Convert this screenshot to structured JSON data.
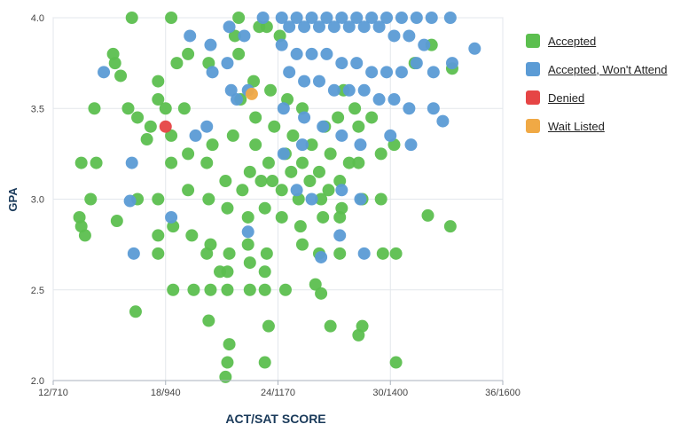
{
  "chart_data": {
    "type": "scatter",
    "title": "",
    "xlabel": "ACT/SAT SCORE",
    "ylabel": "GPA",
    "xlim": [
      12,
      36
    ],
    "ylim": [
      2.0,
      4.0
    ],
    "x_ticks": [
      "12/710",
      "18/940",
      "24/1170",
      "30/1400",
      "36/1600"
    ],
    "x_tick_values": [
      12,
      18,
      24,
      30,
      36
    ],
    "y_ticks": [
      "2.0",
      "2.5",
      "3.0",
      "3.5",
      "4.0"
    ],
    "y_tick_values": [
      2.0,
      2.5,
      3.0,
      3.5,
      4.0
    ],
    "grid": true,
    "legend_position": "right",
    "series": [
      {
        "name": "Accepted",
        "color": "#5cbf4f",
        "points": [
          [
            16.2,
            4.0
          ],
          [
            18.3,
            4.0
          ],
          [
            21.9,
            4.0
          ],
          [
            23.0,
            3.95
          ],
          [
            23.4,
            3.95
          ],
          [
            24.1,
            3.9
          ],
          [
            21.7,
            3.9
          ],
          [
            19.2,
            3.8
          ],
          [
            20.3,
            3.75
          ],
          [
            15.3,
            3.75
          ],
          [
            17.6,
            3.65
          ],
          [
            18.6,
            3.75
          ],
          [
            21.9,
            3.8
          ],
          [
            22.7,
            3.65
          ],
          [
            23.6,
            3.6
          ],
          [
            24.5,
            3.55
          ],
          [
            25.3,
            3.5
          ],
          [
            26.5,
            3.4
          ],
          [
            27.2,
            3.45
          ],
          [
            28.3,
            3.4
          ],
          [
            17.6,
            3.55
          ],
          [
            18.0,
            3.5
          ],
          [
            19.0,
            3.5
          ],
          [
            16.0,
            3.5
          ],
          [
            14.2,
            3.5
          ],
          [
            20.5,
            3.3
          ],
          [
            21.6,
            3.35
          ],
          [
            22.8,
            3.3
          ],
          [
            23.5,
            3.2
          ],
          [
            24.4,
            3.25
          ],
          [
            25.3,
            3.2
          ],
          [
            26.2,
            3.15
          ],
          [
            27.3,
            3.1
          ],
          [
            28.3,
            3.2
          ],
          [
            29.5,
            3.25
          ],
          [
            30.2,
            3.3
          ],
          [
            18.3,
            3.35
          ],
          [
            19.2,
            3.25
          ],
          [
            20.2,
            3.2
          ],
          [
            21.2,
            3.1
          ],
          [
            22.1,
            3.05
          ],
          [
            23.1,
            3.1
          ],
          [
            24.2,
            3.05
          ],
          [
            25.1,
            3.0
          ],
          [
            26.3,
            3.0
          ],
          [
            27.4,
            2.95
          ],
          [
            28.5,
            3.0
          ],
          [
            29.5,
            3.0
          ],
          [
            18.3,
            3.2
          ],
          [
            19.2,
            3.05
          ],
          [
            20.3,
            3.0
          ],
          [
            21.3,
            2.95
          ],
          [
            22.4,
            2.9
          ],
          [
            23.3,
            2.95
          ],
          [
            24.2,
            2.9
          ],
          [
            25.2,
            2.85
          ],
          [
            26.4,
            2.9
          ],
          [
            27.3,
            2.9
          ],
          [
            14.3,
            3.2
          ],
          [
            13.4,
            2.9
          ],
          [
            13.7,
            2.8
          ],
          [
            15.4,
            2.88
          ],
          [
            16.5,
            3.0
          ],
          [
            17.6,
            3.0
          ],
          [
            18.4,
            2.85
          ],
          [
            19.4,
            2.8
          ],
          [
            20.4,
            2.75
          ],
          [
            21.4,
            2.7
          ],
          [
            22.4,
            2.75
          ],
          [
            23.4,
            2.7
          ],
          [
            17.6,
            2.8
          ],
          [
            17.6,
            2.7
          ],
          [
            20.2,
            2.7
          ],
          [
            21.3,
            2.6
          ],
          [
            22.5,
            2.65
          ],
          [
            23.3,
            2.6
          ],
          [
            25.3,
            2.75
          ],
          [
            26.2,
            2.7
          ],
          [
            27.3,
            2.7
          ],
          [
            29.6,
            2.7
          ],
          [
            18.4,
            2.5
          ],
          [
            19.5,
            2.5
          ],
          [
            20.4,
            2.5
          ],
          [
            21.3,
            2.5
          ],
          [
            22.5,
            2.5
          ],
          [
            23.3,
            2.5
          ],
          [
            24.4,
            2.5
          ],
          [
            26.0,
            2.53
          ],
          [
            26.3,
            2.48
          ],
          [
            20.9,
            2.6
          ],
          [
            16.4,
            2.38
          ],
          [
            20.3,
            2.33
          ],
          [
            23.5,
            2.3
          ],
          [
            26.8,
            2.3
          ],
          [
            28.5,
            2.3
          ],
          [
            21.4,
            2.2
          ],
          [
            21.3,
            2.1
          ],
          [
            23.3,
            2.1
          ],
          [
            30.3,
            2.1
          ],
          [
            21.2,
            2.02
          ],
          [
            28.3,
            2.25
          ],
          [
            30.3,
            2.7
          ],
          [
            32.0,
            2.91
          ],
          [
            33.2,
            2.85
          ],
          [
            33.3,
            3.72
          ],
          [
            32.2,
            3.85
          ],
          [
            31.3,
            3.75
          ],
          [
            27.5,
            3.6
          ],
          [
            28.1,
            3.5
          ],
          [
            29.0,
            3.45
          ],
          [
            17.2,
            3.4
          ],
          [
            17.0,
            3.33
          ],
          [
            16.5,
            3.45
          ],
          [
            15.2,
            3.8
          ],
          [
            14.0,
            3.0
          ],
          [
            13.5,
            3.2
          ],
          [
            13.5,
            2.85
          ],
          [
            15.6,
            3.68
          ],
          [
            22.0,
            3.55
          ],
          [
            22.8,
            3.45
          ],
          [
            23.8,
            3.4
          ],
          [
            24.8,
            3.35
          ],
          [
            25.8,
            3.3
          ],
          [
            26.8,
            3.25
          ],
          [
            27.8,
            3.2
          ],
          [
            22.5,
            3.15
          ],
          [
            23.7,
            3.1
          ],
          [
            24.7,
            3.15
          ],
          [
            25.7,
            3.1
          ],
          [
            26.7,
            3.05
          ]
        ]
      },
      {
        "name": "Accepted, Won't Attend",
        "color": "#5b9bd5",
        "points": [
          [
            24.2,
            4.0
          ],
          [
            25.0,
            4.0
          ],
          [
            25.8,
            4.0
          ],
          [
            26.6,
            4.0
          ],
          [
            27.4,
            4.0
          ],
          [
            28.2,
            4.0
          ],
          [
            29.0,
            4.0
          ],
          [
            29.8,
            4.0
          ],
          [
            30.6,
            4.0
          ],
          [
            31.4,
            4.0
          ],
          [
            32.2,
            4.0
          ],
          [
            33.2,
            4.0
          ],
          [
            24.6,
            3.95
          ],
          [
            25.4,
            3.95
          ],
          [
            26.2,
            3.95
          ],
          [
            27.0,
            3.95
          ],
          [
            27.8,
            3.95
          ],
          [
            28.6,
            3.95
          ],
          [
            29.4,
            3.95
          ],
          [
            30.2,
            3.9
          ],
          [
            31.0,
            3.9
          ],
          [
            31.8,
            3.85
          ],
          [
            34.5,
            3.83
          ],
          [
            24.2,
            3.85
          ],
          [
            25.0,
            3.8
          ],
          [
            25.8,
            3.8
          ],
          [
            26.6,
            3.8
          ],
          [
            27.4,
            3.75
          ],
          [
            28.2,
            3.75
          ],
          [
            29.0,
            3.7
          ],
          [
            29.8,
            3.7
          ],
          [
            30.6,
            3.7
          ],
          [
            31.4,
            3.75
          ],
          [
            32.3,
            3.7
          ],
          [
            33.3,
            3.75
          ],
          [
            24.6,
            3.7
          ],
          [
            25.4,
            3.65
          ],
          [
            26.2,
            3.65
          ],
          [
            27.0,
            3.6
          ],
          [
            27.8,
            3.6
          ],
          [
            28.6,
            3.6
          ],
          [
            29.4,
            3.55
          ],
          [
            30.2,
            3.55
          ],
          [
            31.0,
            3.5
          ],
          [
            32.3,
            3.5
          ],
          [
            21.4,
            3.95
          ],
          [
            22.2,
            3.9
          ],
          [
            19.3,
            3.9
          ],
          [
            20.4,
            3.85
          ],
          [
            21.3,
            3.75
          ],
          [
            20.5,
            3.7
          ],
          [
            14.7,
            3.7
          ],
          [
            21.5,
            3.6
          ],
          [
            22.4,
            3.6
          ],
          [
            21.8,
            3.55
          ],
          [
            24.3,
            3.5
          ],
          [
            25.4,
            3.45
          ],
          [
            26.4,
            3.4
          ],
          [
            27.4,
            3.35
          ],
          [
            28.4,
            3.3
          ],
          [
            25.3,
            3.3
          ],
          [
            24.3,
            3.25
          ],
          [
            20.2,
            3.4
          ],
          [
            19.6,
            3.35
          ],
          [
            16.2,
            3.2
          ],
          [
            16.1,
            2.99
          ],
          [
            25.0,
            3.05
          ],
          [
            25.8,
            3.0
          ],
          [
            27.4,
            3.05
          ],
          [
            28.4,
            3.0
          ],
          [
            18.3,
            2.9
          ],
          [
            16.3,
            2.7
          ],
          [
            22.4,
            2.82
          ],
          [
            27.3,
            2.8
          ],
          [
            26.3,
            2.68
          ],
          [
            28.6,
            2.7
          ],
          [
            30.0,
            3.35
          ],
          [
            31.1,
            3.3
          ],
          [
            32.8,
            3.43
          ],
          [
            23.2,
            4.0
          ]
        ]
      },
      {
        "name": "Denied",
        "color": "#e64545",
        "points": [
          [
            18.0,
            3.4
          ]
        ]
      },
      {
        "name": "Wait Listed",
        "color": "#f0a945",
        "points": [
          [
            22.6,
            3.58
          ]
        ]
      }
    ]
  },
  "legend": {
    "items": [
      {
        "label": "Accepted",
        "color": "#5cbf4f"
      },
      {
        "label": "Accepted, Won't Attend",
        "color": "#5b9bd5"
      },
      {
        "label": "Denied",
        "color": "#e64545"
      },
      {
        "label": "Wait Listed",
        "color": "#f0a945"
      }
    ]
  }
}
